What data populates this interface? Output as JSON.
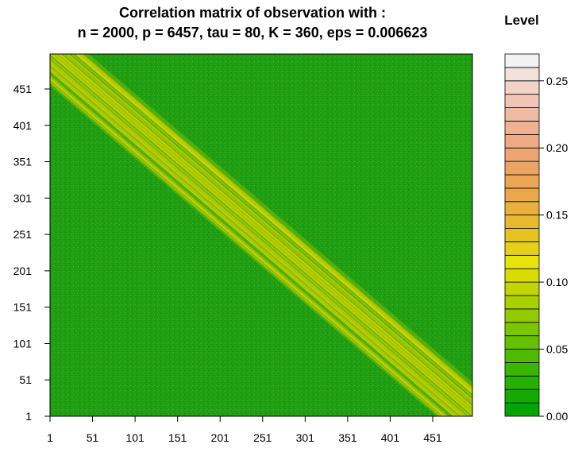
{
  "chart_data": {
    "type": "heatmap",
    "title_line1": "Correlation matrix of observation with :",
    "title_line2": "n = 2000, p = 6457, tau = 80, K = 360, eps = 0.006623",
    "xlabel": "",
    "ylabel": "",
    "x_ticks": [
      "1",
      "51",
      "101",
      "151",
      "201",
      "251",
      "301",
      "351",
      "401",
      "451"
    ],
    "y_ticks": [
      "1",
      "51",
      "101",
      "151",
      "201",
      "251",
      "301",
      "351",
      "401",
      "451"
    ],
    "matrix_size": 500,
    "diagonal_band": {
      "orientation": "top-left to bottom-right",
      "approx_width_in_indices": 80,
      "band_level_approx": 0.13,
      "background_level_approx": 0.01
    },
    "legend": {
      "title": "Level",
      "ticks": [
        "0.00",
        "0.05",
        "0.10",
        "0.15",
        "0.20",
        "0.25"
      ],
      "tick_values": [
        0.0,
        0.05,
        0.1,
        0.15,
        0.2,
        0.25
      ],
      "range": [
        0.0,
        0.27
      ],
      "colors": [
        "#00A600",
        "#13AB00",
        "#26B000",
        "#3AB600",
        "#4FBB00",
        "#64C000",
        "#7AC600",
        "#91CB00",
        "#A9D000",
        "#C1D600",
        "#DADB00",
        "#E6E40C",
        "#E6D116",
        "#E7C321",
        "#E8B82E",
        "#E9B03B",
        "#EAA848",
        "#EBA555",
        "#ECA464",
        "#EDA673",
        "#EEAA83",
        "#EFB193",
        "#F0BAA4",
        "#F1C5B5",
        "#F2D3C8",
        "#F2E2DB",
        "#F2F2F2"
      ]
    },
    "colors": {
      "background_green": "#1E9E12",
      "band_yellow": "#C8D000"
    }
  }
}
